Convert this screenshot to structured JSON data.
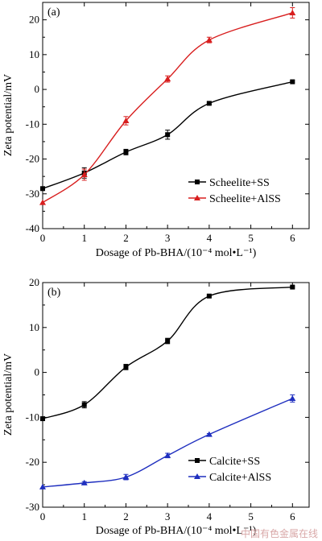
{
  "chart_data": [
    {
      "type": "line",
      "panel": "(a)",
      "xlabel": "Dosage of Pb-BHA/(10⁻⁴ mol•L⁻¹)",
      "ylabel": "Zeta potential/mV",
      "xlim": [
        0,
        6.4
      ],
      "ylim": [
        -40,
        25
      ],
      "xticks": [
        0,
        1,
        2,
        3,
        4,
        5,
        6
      ],
      "yticks": [
        -40,
        -30,
        -20,
        -10,
        0,
        10,
        20
      ],
      "legend_position": "lower-right",
      "series": [
        {
          "name": "Scheelite+SS",
          "color": "#000000",
          "marker": "square",
          "x": [
            0,
            1,
            2,
            3,
            4,
            6
          ],
          "y": [
            -28.5,
            -24.0,
            -18.0,
            -13.0,
            -4.0,
            2.2
          ],
          "err": [
            0,
            1.5,
            0.8,
            1.3,
            0.3,
            0.3
          ]
        },
        {
          "name": "Scheelite+AlSS",
          "color": "#d81e1e",
          "marker": "triangle",
          "x": [
            0,
            1,
            2,
            3,
            4,
            6
          ],
          "y": [
            -32.5,
            -24.5,
            -9.0,
            3.0,
            14.2,
            22.0
          ],
          "err": [
            0,
            1.6,
            1.2,
            0.9,
            0.8,
            1.5
          ]
        }
      ]
    },
    {
      "type": "line",
      "panel": "(b)",
      "xlabel": "Dosage of Pb-BHA/(10⁻⁴ mol•L⁻¹)",
      "ylabel": "Zeta potential/mV",
      "xlim": [
        0,
        6.4
      ],
      "ylim": [
        -30,
        20
      ],
      "xticks": [
        0,
        1,
        2,
        3,
        4,
        5,
        6
      ],
      "yticks": [
        -30,
        -20,
        -10,
        0,
        10,
        20
      ],
      "legend_position": "lower-right",
      "series": [
        {
          "name": "Calcite+SS",
          "color": "#000000",
          "marker": "square",
          "x": [
            0,
            1,
            2,
            3,
            4,
            6
          ],
          "y": [
            -10.3,
            -7.2,
            1.2,
            7.0,
            17.0,
            19.0
          ],
          "err": [
            0,
            0.7,
            0.6,
            0.6,
            0.2,
            0.2
          ]
        },
        {
          "name": "Calcite+AlSS",
          "color": "#1f2fbf",
          "marker": "triangle",
          "x": [
            0,
            1,
            2,
            3,
            4,
            6
          ],
          "y": [
            -25.5,
            -24.6,
            -23.3,
            -18.5,
            -13.8,
            -5.8
          ],
          "err": [
            0,
            0.3,
            0.6,
            0.5,
            0.2,
            0.8
          ]
        }
      ]
    }
  ],
  "watermark_text": "中国有色金属在线"
}
